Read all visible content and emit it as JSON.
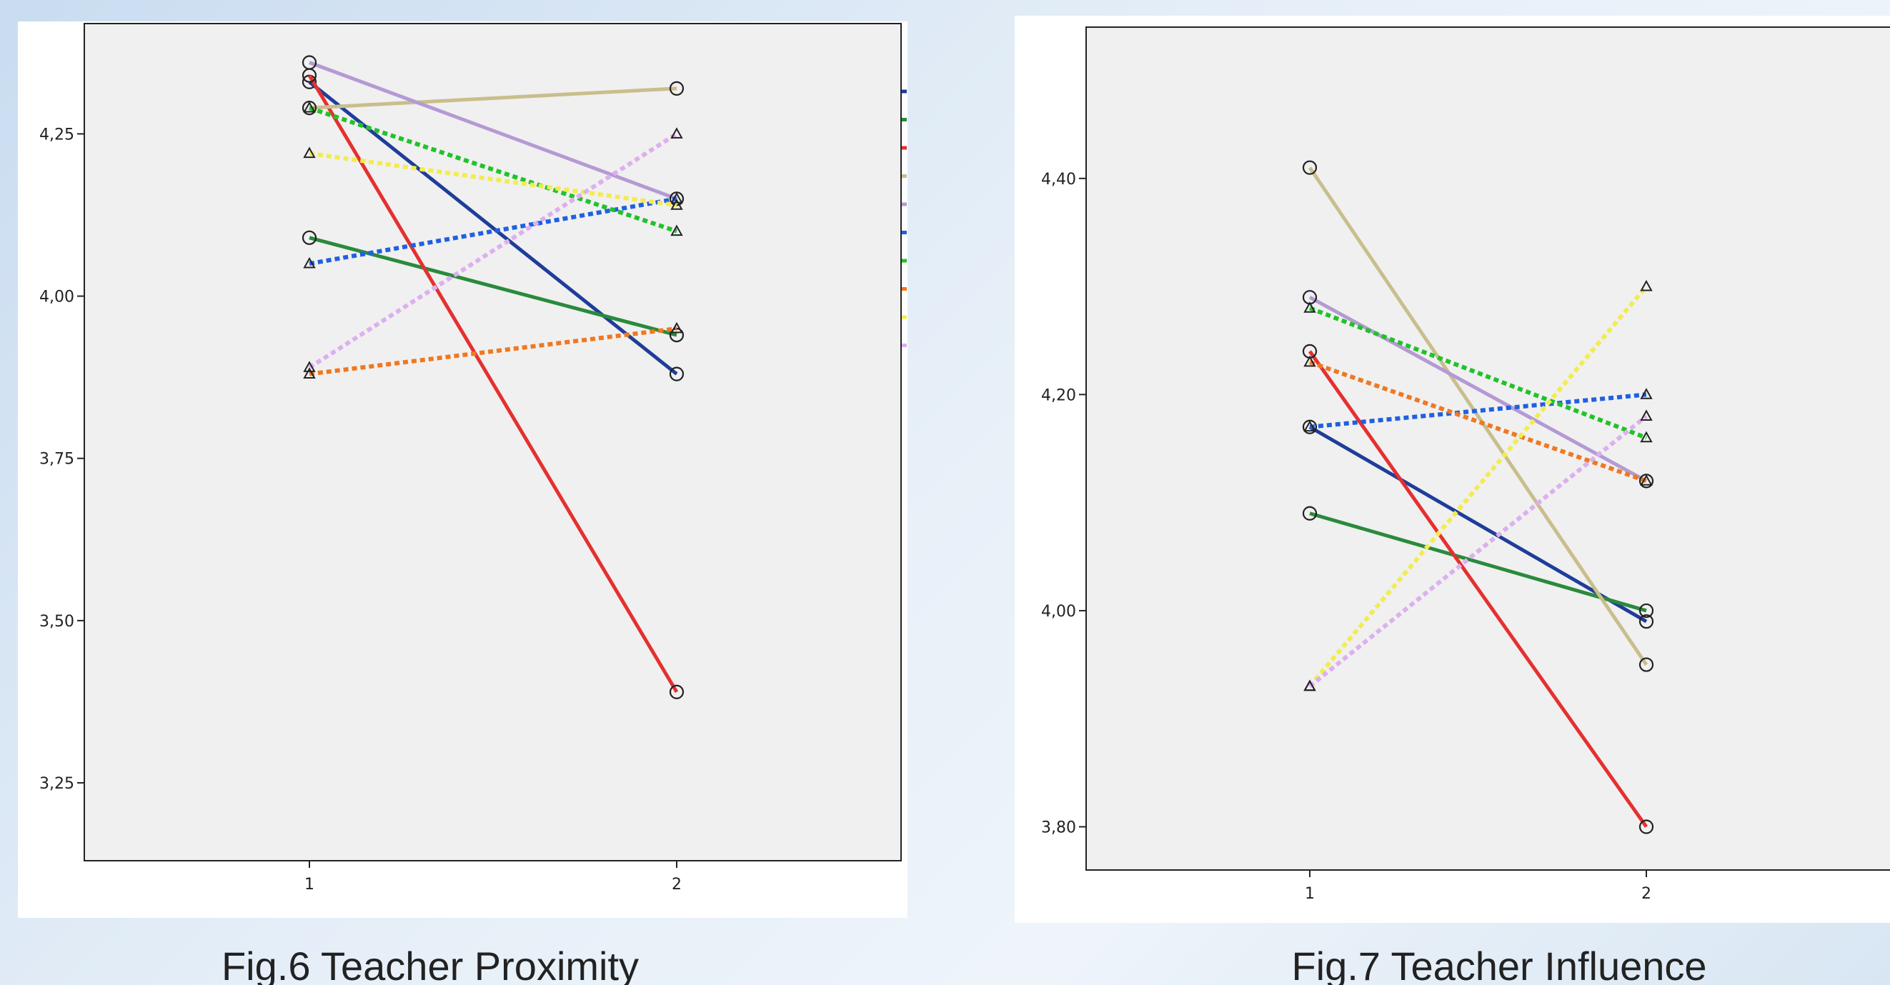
{
  "figures": [
    {
      "caption": "Fig.6 Teacher Proximity",
      "chart_data": {
        "type": "line",
        "title": "",
        "xlabel": "",
        "ylabel": "",
        "x": [
          1,
          2
        ],
        "x_tick_labels": [
          "1",
          "2"
        ],
        "y_ticks": [
          3.25,
          3.5,
          3.75,
          4.0,
          4.25
        ],
        "y_tick_labels": [
          "3,25",
          "3,50",
          "3,75",
          "4,00",
          "4,25"
        ],
        "ylim": [
          3.13,
          4.42
        ],
        "grid": false,
        "legend": "right (cropped, no labels visible)",
        "series": [
          {
            "color": "#1f3d99",
            "dashed": false,
            "marker": "circle",
            "values": [
              4.33,
              3.88
            ]
          },
          {
            "color": "#2a8a3c",
            "dashed": false,
            "marker": "circle",
            "values": [
              4.09,
              3.94
            ]
          },
          {
            "color": "#e53030",
            "dashed": false,
            "marker": "circle",
            "values": [
              4.34,
              3.39
            ]
          },
          {
            "color": "#c9be8c",
            "dashed": false,
            "marker": "circle",
            "values": [
              4.29,
              4.32
            ]
          },
          {
            "color": "#b49ad4",
            "dashed": false,
            "marker": "circle",
            "values": [
              4.36,
              4.15
            ]
          },
          {
            "color": "#2060e0",
            "dashed": true,
            "marker": "triangle",
            "values": [
              4.05,
              4.15
            ]
          },
          {
            "color": "#22c22a",
            "dashed": true,
            "marker": "triangle",
            "values": [
              4.29,
              4.1
            ]
          },
          {
            "color": "#f07820",
            "dashed": true,
            "marker": "triangle",
            "values": [
              3.88,
              3.95
            ]
          },
          {
            "color": "#f2ec50",
            "dashed": true,
            "marker": "triangle",
            "values": [
              4.22,
              4.14
            ]
          },
          {
            "color": "#dcb0ee",
            "dashed": true,
            "marker": "triangle",
            "values": [
              3.89,
              4.25
            ]
          }
        ]
      }
    },
    {
      "caption": "Fig.7 Teacher Influence",
      "chart_data": {
        "type": "line",
        "title": "",
        "xlabel": "",
        "ylabel": "",
        "x": [
          1,
          2
        ],
        "x_tick_labels": [
          "1",
          "2"
        ],
        "y_ticks": [
          3.8,
          4.0,
          4.2,
          4.4
        ],
        "y_tick_labels": [
          "3,80",
          "4,00",
          "4,20",
          "4,40"
        ],
        "ylim": [
          3.76,
          4.54
        ],
        "grid": false,
        "legend": "none visible",
        "series": [
          {
            "color": "#1f3d99",
            "dashed": false,
            "marker": "circle",
            "values": [
              4.17,
              3.99
            ]
          },
          {
            "color": "#2a8a3c",
            "dashed": false,
            "marker": "circle",
            "values": [
              4.09,
              4.0
            ]
          },
          {
            "color": "#e53030",
            "dashed": false,
            "marker": "circle",
            "values": [
              4.24,
              3.8
            ]
          },
          {
            "color": "#c9be8c",
            "dashed": false,
            "marker": "circle",
            "values": [
              4.41,
              3.95
            ]
          },
          {
            "color": "#b49ad4",
            "dashed": false,
            "marker": "circle",
            "values": [
              4.29,
              4.12
            ]
          },
          {
            "color": "#2060e0",
            "dashed": true,
            "marker": "triangle",
            "values": [
              4.17,
              4.2
            ]
          },
          {
            "color": "#22c22a",
            "dashed": true,
            "marker": "triangle",
            "values": [
              4.28,
              4.16
            ]
          },
          {
            "color": "#f07820",
            "dashed": true,
            "marker": "triangle",
            "values": [
              4.23,
              4.12
            ]
          },
          {
            "color": "#f2ec50",
            "dashed": true,
            "marker": "triangle",
            "values": [
              3.93,
              4.3
            ]
          },
          {
            "color": "#dcb0ee",
            "dashed": true,
            "marker": "triangle",
            "values": [
              3.93,
              4.18
            ]
          }
        ]
      }
    }
  ]
}
